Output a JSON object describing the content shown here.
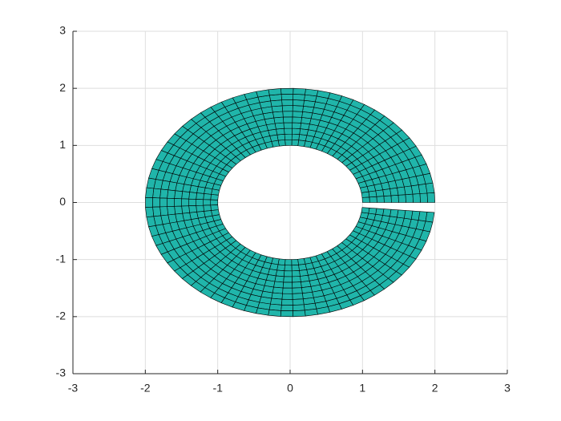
{
  "chart_data": {
    "type": "annulus-mesh",
    "radius_range": [
      1,
      2
    ],
    "radius_divisions": 10,
    "theta_range_deg": [
      0,
      355
    ],
    "theta_divisions": 72,
    "color": "#20b5aa",
    "edge_color": "#000000",
    "xlim": [
      -3,
      3
    ],
    "ylim": [
      -3,
      3
    ],
    "xticks": [
      -3,
      -2,
      -1,
      0,
      1,
      2,
      3
    ],
    "yticks": [
      -3,
      -2,
      -1,
      0,
      1,
      2,
      3
    ],
    "grid": true
  }
}
